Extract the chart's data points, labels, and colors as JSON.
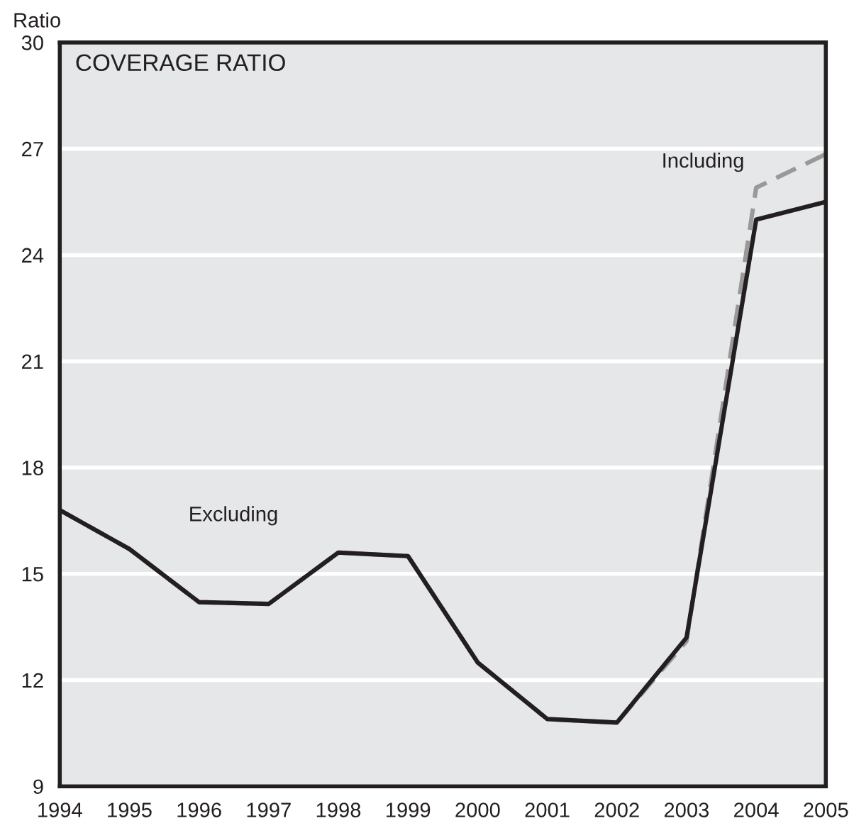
{
  "chart_data": {
    "type": "line",
    "title": "COVERAGE RATIO",
    "ylabel": "Ratio",
    "x": [
      1994,
      1995,
      1996,
      1997,
      1998,
      1999,
      2000,
      2001,
      2002,
      2003,
      2004,
      2005
    ],
    "xlim": [
      1994,
      2005
    ],
    "xticks": [
      1994,
      1995,
      1996,
      1997,
      1998,
      1999,
      2000,
      2001,
      2002,
      2003,
      2004,
      2005
    ],
    "ylim": [
      9,
      30
    ],
    "yticks": [
      9,
      12,
      15,
      18,
      21,
      24,
      27,
      30
    ],
    "grid": "y",
    "legend": false,
    "series": [
      {
        "name": "Including",
        "color": "#999999",
        "line_style": "dashed",
        "values": [
          16.8,
          15.7,
          14.2,
          14.15,
          15.6,
          15.5,
          12.5,
          10.9,
          10.8,
          13.1,
          25.9,
          26.85
        ]
      },
      {
        "name": "Excluding",
        "color": "#231f20",
        "line_style": "solid",
        "values": [
          16.8,
          15.7,
          14.2,
          14.15,
          15.6,
          15.5,
          12.5,
          10.9,
          10.8,
          13.2,
          25.0,
          25.5
        ]
      }
    ]
  }
}
